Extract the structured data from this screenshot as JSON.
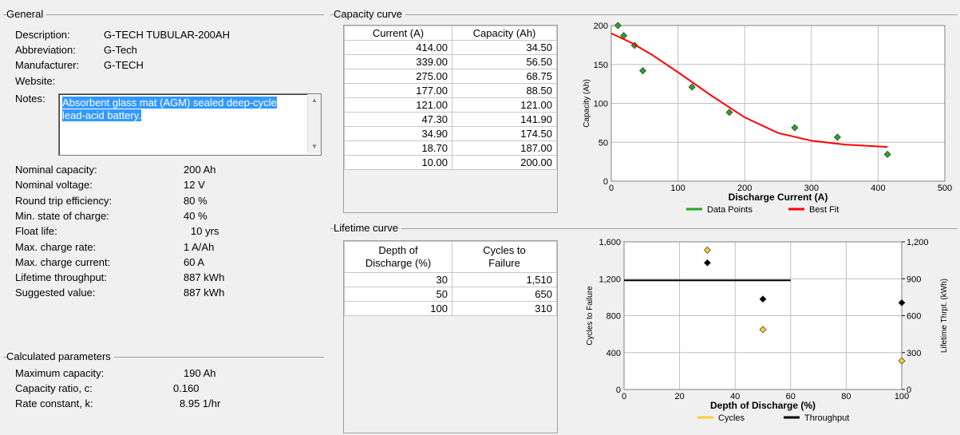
{
  "general": {
    "title": "General",
    "description_label": "Description:",
    "description_value": "G-TECH TUBULAR-200AH",
    "abbreviation_label": "Abbreviation:",
    "abbreviation_value": "G-Tech",
    "manufacturer_label": "Manufacturer:",
    "manufacturer_value": "G-TECH",
    "website_label": "Website:",
    "notes_label": "Notes:",
    "notes_value": "Absorbent glass mat (AGM) sealed deep-cycle lead-acid battery.",
    "params": [
      {
        "label": "Nominal capacity:",
        "value": "200 Ah"
      },
      {
        "label": "Nominal voltage:",
        "value": "12 V"
      },
      {
        "label": "Round trip efficiency:",
        "value": "80 %"
      },
      {
        "label": "Min. state of charge:",
        "value": "40 %"
      },
      {
        "label": "Float life:",
        "value": "10 yrs"
      },
      {
        "label": "Max. charge rate:",
        "value": "1 A/Ah"
      },
      {
        "label": "Max. charge current:",
        "value": "60 A"
      },
      {
        "label": "Lifetime throughput:",
        "value": "887 kWh"
      },
      {
        "label": "Suggested value:",
        "value": "887 kWh"
      }
    ]
  },
  "calculated": {
    "title": "Calculated parameters",
    "params": [
      {
        "label": "Maximum capacity:",
        "value": "190 Ah"
      },
      {
        "label": "Capacity ratio, c:",
        "value": "0.160"
      },
      {
        "label": "Rate constant, k:",
        "value": "8.95 1/hr"
      }
    ]
  },
  "capacity_curve": {
    "title": "Capacity curve",
    "col1": "Current (A)",
    "col2": "Capacity (Ah)",
    "rows": [
      [
        "414.00",
        "34.50"
      ],
      [
        "339.00",
        "56.50"
      ],
      [
        "275.00",
        "68.75"
      ],
      [
        "177.00",
        "88.50"
      ],
      [
        "121.00",
        "121.00"
      ],
      [
        "47.30",
        "141.90"
      ],
      [
        "34.90",
        "174.50"
      ],
      [
        "18.70",
        "187.00"
      ],
      [
        "10.00",
        "200.00"
      ]
    ]
  },
  "lifetime_curve": {
    "title": "Lifetime curve",
    "col1_line1": "Depth of",
    "col1_line2": "Discharge (%)",
    "col2_line1": "Cycles to",
    "col2_line2": "Failure",
    "rows": [
      [
        "30",
        "1,510"
      ],
      [
        "50",
        "650"
      ],
      [
        "100",
        "310"
      ]
    ]
  },
  "chart_data": [
    {
      "type": "scatter",
      "xlabel": "Discharge Current (A)",
      "ylabel": "Capacity (Ah)",
      "xlim": [
        0,
        500
      ],
      "ylim": [
        0,
        200
      ],
      "xticks": [
        "0",
        "100",
        "200",
        "300",
        "400",
        "500"
      ],
      "yticks": [
        "0",
        "50",
        "100",
        "150",
        "200"
      ],
      "grid": true,
      "legend": "bottom",
      "series": [
        {
          "name": "Data Points",
          "color": "#22aa22",
          "x": [
            10,
            18.7,
            34.9,
            47.3,
            121,
            177,
            275,
            339,
            414
          ],
          "y": [
            200,
            187,
            174.5,
            141.9,
            121,
            88.5,
            68.75,
            56.5,
            34.5
          ]
        },
        {
          "name": "Best Fit",
          "color": "#ff0000",
          "x": [
            0,
            30,
            60,
            100,
            150,
            200,
            250,
            300,
            350,
            414
          ],
          "y": [
            190,
            178,
            163,
            140,
            110,
            82,
            62,
            52,
            47,
            44
          ]
        }
      ]
    },
    {
      "type": "scatter",
      "xlabel": "Depth of Discharge (%)",
      "ylabel": "Cycles to Failure",
      "y2label": "Lifetime Thrpt. (kWh)",
      "xlim": [
        0,
        100
      ],
      "ylim": [
        0,
        1600
      ],
      "y2lim": [
        0,
        1200
      ],
      "xticks": [
        "0",
        "20",
        "40",
        "60",
        "80",
        "100"
      ],
      "yticks": [
        "0",
        "400",
        "800",
        "1,200",
        "1,600"
      ],
      "y2ticks": [
        "0",
        "300",
        "600",
        "900",
        "1,200"
      ],
      "grid": true,
      "legend": "bottom",
      "series": [
        {
          "name": "Cycles",
          "color": "#ffcc33",
          "x": [
            30,
            50,
            100
          ],
          "y": [
            1510,
            650,
            310
          ]
        },
        {
          "name": "Throughput",
          "color": "#000000",
          "axis": "y2",
          "x": [
            30,
            50,
            100
          ],
          "y": [
            1030,
            735,
            705
          ]
        }
      ],
      "reference_line": {
        "axis": "y2",
        "value": 887,
        "x": [
          0,
          60
        ]
      }
    }
  ]
}
